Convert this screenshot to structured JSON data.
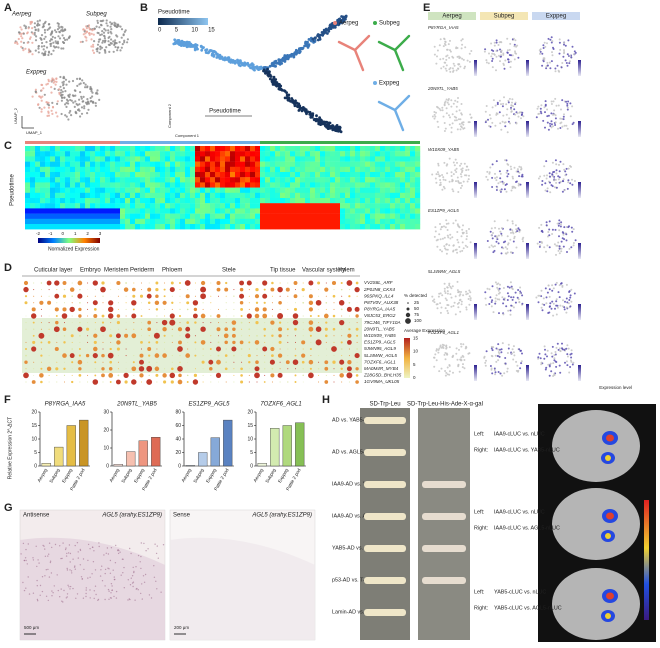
{
  "panel_labels": [
    "A",
    "B",
    "C",
    "D",
    "E",
    "F",
    "G",
    "H"
  ],
  "a": {
    "groups": [
      "Aerpeg",
      "Subpeg",
      "Exppeg"
    ],
    "x_label": "UMAP_1",
    "y_label": "UMAP_2"
  },
  "b": {
    "colorbar_title": "Pseudotime",
    "colorbar_ticks": [
      0,
      5,
      10,
      15
    ],
    "axis_label": "Pseudotime",
    "x_label": "Component 1",
    "y_label": "Component 2",
    "groups": [
      "Aerpeg",
      "Subpeg",
      "Exppeg"
    ]
  },
  "c": {
    "y_label": "Pseudotime",
    "colorbar_title": "Normalized Expression",
    "colorbar_ticks": [
      -2,
      -1,
      0,
      1,
      2,
      3
    ]
  },
  "d": {
    "tissues": [
      "Cuticular layer",
      "Embryo",
      "Meristem",
      "Periderm",
      "Phloem",
      "Stele",
      "Tip tissue",
      "Vascular system",
      "Xylem"
    ],
    "genes": [
      "VV2S8L_ARF",
      "2P0JN8_CKX4",
      "96SPKQ_ILL4",
      "P8TV0V_AUX38",
      "P8YRGA_IAA5",
      "V8JC53_ERG2",
      "79CJ46_TIFY10A",
      "20N9TL_YAB5",
      "W10X09_YAB5",
      "ES1ZP9_AGL5",
      "9JWN95_AGL9",
      "5LJ4WW_AGL5",
      "7OZXF6_AGL1",
      "MA0M4R_MYB4",
      "Z28G5D_BHLH35",
      "1GV9MA_UKL05"
    ],
    "size_title": "% detected",
    "size_ticks": [
      25,
      50,
      75,
      100
    ],
    "color_title": "Average Expression",
    "color_ticks": [
      0,
      5,
      10,
      15
    ]
  },
  "e": {
    "groups": [
      "Aerpeg",
      "Subpeg",
      "Exppeg"
    ],
    "genes": [
      "P8YRGA_IAA5",
      "20N9TL_YAB5",
      "W10X09_YAB5",
      "ES1ZP9_AGL5",
      "5LJ4WW_AGL5",
      "7OZXF6_AGL1"
    ],
    "legend": "Expression level"
  },
  "f": {
    "y_label": "Relative Expression 2^-ΔCT",
    "charts": [
      {
        "title": "P8YRGA_IAA5",
        "categories": [
          "Aerpeg",
          "Subpeg",
          "Exppeg",
          "Pattie 2 pod"
        ],
        "values": [
          1,
          7,
          15,
          17
        ],
        "ylim": [
          0,
          20
        ],
        "yticks": [
          0,
          5,
          10,
          15,
          20
        ],
        "colors": [
          "#f6eeb4",
          "#f0dc7c",
          "#e5bd45",
          "#c99526"
        ]
      },
      {
        "title": "20N9TL_YAB5",
        "categories": [
          "Aerpeg",
          "Subpeg",
          "Exppeg",
          "Pattie 2 pod"
        ],
        "values": [
          1,
          8,
          14,
          16
        ],
        "ylim": [
          0,
          30
        ],
        "yticks": [
          0,
          10,
          20,
          30
        ],
        "colors": [
          "#fbe3dc",
          "#f6c0b0",
          "#ee9680",
          "#de6b55"
        ]
      },
      {
        "title": "ES1ZP9_AGL5",
        "categories": [
          "Aerpeg",
          "Subpeg",
          "Exppeg",
          "Pattie 2 pod"
        ],
        "values": [
          1,
          20,
          42,
          68
        ],
        "ylim": [
          0,
          80
        ],
        "yticks": [
          0,
          20,
          40,
          60,
          80
        ],
        "colors": [
          "#dfeaf6",
          "#b5cce9",
          "#86a9d8",
          "#5a82c1"
        ]
      },
      {
        "title": "7OZXF6_AGL1",
        "categories": [
          "Aerpeg",
          "Subpeg",
          "Exppeg",
          "Pattie 2 pod"
        ],
        "values": [
          1,
          14,
          15,
          16
        ],
        "ylim": [
          0,
          20
        ],
        "yticks": [
          0,
          5,
          10,
          15,
          20
        ],
        "colors": [
          "#eef6dc",
          "#d3ebb0",
          "#b0d97e",
          "#86bf55"
        ]
      }
    ]
  },
  "g": {
    "panels": [
      {
        "label": "Antisense",
        "gene": "AGL5 (arahy.ES1ZP9)",
        "scale": "500 μm"
      },
      {
        "label": "Sense",
        "gene": "AGL5 (arahy.ES1ZP9)",
        "scale": "200 μm"
      }
    ]
  },
  "h": {
    "media": [
      "SD-Trp-Leu",
      "SD-Trp-Leu-His-Ade-X-α-gal"
    ],
    "pairs": [
      "AD vs. YAB5-BD",
      "AD vs. AGL5-BD",
      "IAA9-AD vs. YAB5-BD",
      "IAA9-AD vs. AGL5-BD",
      "YAB5-AD vs. AGL5-BD",
      "p53-AD vs. T-BD",
      "Lamin-AD vs. T-BD"
    ],
    "leaves": [
      {
        "left": "Left:",
        "left_text": "IAA9-cLUC vs. nLUC",
        "right": "Right:",
        "right_text": "IAA9-cLUC vs. YAB5-nLUC"
      },
      {
        "left": "Left:",
        "left_text": "IAA9-cLUC vs. nLUC",
        "right": "Right:",
        "right_text": "IAA9-cLUC vs. AGL5-nLUC"
      },
      {
        "left": "Left:",
        "left_text": "YAB5-cLUC vs. nLUC",
        "right": "Right:",
        "right_text": "YAB5-cLUC vs. AGL5-nLUC"
      }
    ]
  }
}
